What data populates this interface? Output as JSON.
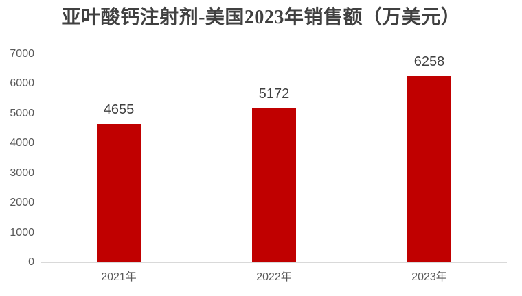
{
  "chart_data": {
    "type": "bar",
    "title": "亚叶酸钙注射剂-美国2023年销售额（万美元）",
    "categories": [
      "2021年",
      "2022年",
      "2023年"
    ],
    "values": [
      4655,
      5172,
      6258
    ],
    "value_labels": [
      "4655",
      "5172",
      "6258"
    ],
    "ytick_labels": [
      "0",
      "1000",
      "2000",
      "3000",
      "4000",
      "5000",
      "6000",
      "7000"
    ],
    "ylim": [
      0,
      7000
    ],
    "ytick_step": 1000,
    "xlabel": "",
    "ylabel": "",
    "grid": false,
    "legend": false
  },
  "colors": {
    "background": "#FFFFFF",
    "bar": "#C00000",
    "title_text": "#404040",
    "value_label_text": "#404040",
    "axis_label_text": "#595959",
    "axis_line": "#D9D9D9"
  }
}
